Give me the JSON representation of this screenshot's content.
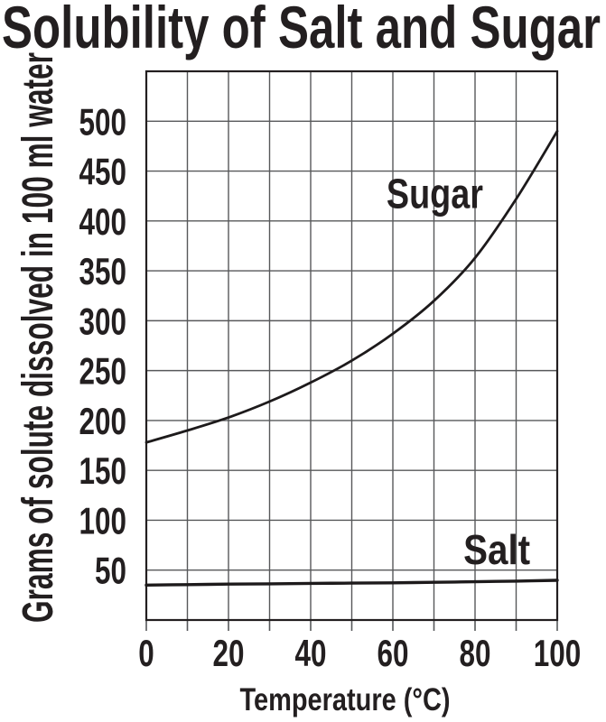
{
  "page": {
    "background": "#ffffff"
  },
  "chart_data": {
    "type": "line",
    "title": "Solubility of Salt and Sugar",
    "xlabel": "Temperature (°C)",
    "ylabel": "Grams of solute dissolved in 100 ml water",
    "xlim": [
      0,
      100
    ],
    "ylim": [
      0,
      550
    ],
    "x_grid_step": 10,
    "y_grid_step": 50,
    "grid": true,
    "legend_position": "inline-labels",
    "x_tick_labels": [
      0,
      20,
      40,
      60,
      80,
      100
    ],
    "y_tick_labels": [
      50,
      100,
      150,
      200,
      250,
      300,
      350,
      400,
      450,
      500
    ],
    "x": [
      0,
      10,
      20,
      30,
      40,
      50,
      60,
      70,
      80,
      90,
      100
    ],
    "series": [
      {
        "name": "Sugar",
        "values": [
          178,
          190,
          203,
          219,
          238,
          260,
          287,
          320,
          363,
          422,
          490
        ],
        "label_anchor": {
          "x": 70.2,
          "y": 413
        }
      },
      {
        "name": "Salt",
        "values": [
          35,
          35.5,
          36,
          36.3,
          36.7,
          37,
          37.3,
          37.8,
          38.4,
          39,
          39.8
        ],
        "label_anchor": {
          "x": 85.3,
          "y": 56
        }
      }
    ],
    "colors": {
      "curve": "#1d1a1b",
      "grid": "#57585a",
      "frame": "#231f20",
      "text": "#231f20",
      "background": "#ffffff"
    }
  }
}
